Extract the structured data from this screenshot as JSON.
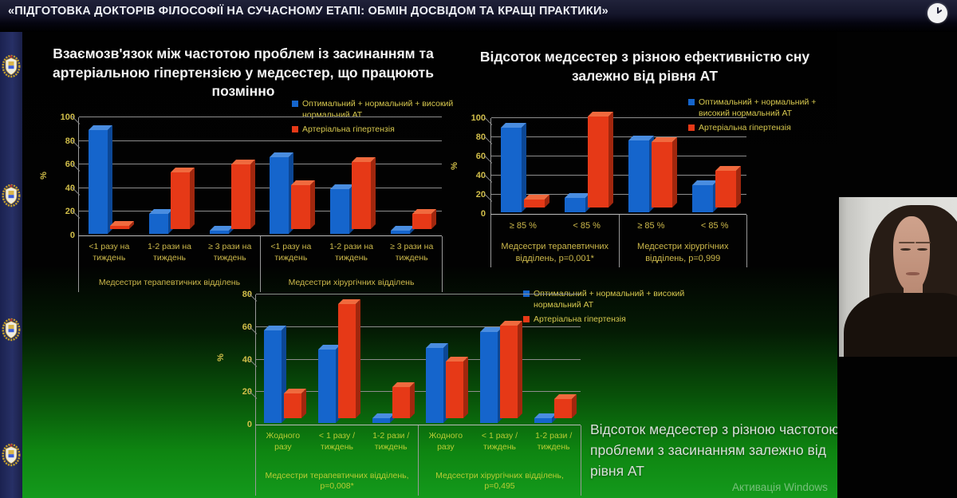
{
  "header": {
    "title": "«ПІДГОТОВКА ДОКТОРІВ ФІЛОСОФІЇ НА СУЧАСНОМУ ЕТАПІ: ОБМІН ДОСВІДОМ ТА КРАЩІ ПРАКТИКИ»"
  },
  "sidebar": {
    "emblem": "university-crest",
    "emblem_count": 4
  },
  "colors": {
    "series_normal_blue": "#1565cc",
    "series_hypertension_red": "#e63917",
    "tick_label_yellow": "#d2bf4a",
    "bottom_label_green_yellow": "#b9cc35",
    "slide_green_bottom": "#149a1c"
  },
  "chart_data": [
    {
      "type": "bar",
      "title": "Взаємозв'язок між частотою проблем із засинанням та артеріальною гіпертензією у медсестер, що працюють позмінно",
      "xlabel": "",
      "ylabel": "%",
      "ylim": [
        0,
        100
      ],
      "yticks": [
        0,
        20,
        40,
        60,
        80,
        100
      ],
      "grid": true,
      "legend_position": "top-right",
      "categories": [
        "<1 разу на тиждень",
        "1-2 рази на тиждень",
        "≥ 3 рази на тиждень",
        "<1 разу на тиждень",
        "1-2 рази на тиждень",
        "≥ 3 рази на тиждень"
      ],
      "series": [
        {
          "name": "Оптимальний + нормальний + високий нормальний АТ",
          "color": "#1565cc",
          "values": [
            88,
            17,
            3,
            65,
            38,
            3
          ]
        },
        {
          "name": "Артеріальна гіпертензія",
          "color": "#e63917",
          "values": [
            3,
            48,
            55,
            37,
            57,
            13
          ]
        }
      ],
      "group_labels": [
        {
          "label": "Медсестри терапевтичних відділень",
          "span": 3
        },
        {
          "label": "Медсестри хірургічних відділень",
          "span": 3
        }
      ]
    },
    {
      "type": "bar",
      "title": "Відсоток медсестер з різною ефективністю сну залежно від рівня АТ",
      "xlabel": "",
      "ylabel": "%",
      "ylim": [
        0,
        100
      ],
      "yticks": [
        0,
        20,
        40,
        60,
        80,
        100
      ],
      "grid": true,
      "legend_position": "top-right",
      "categories": [
        "≥ 85 %",
        "< 85 %",
        "≥ 85 %",
        "< 85 %"
      ],
      "series": [
        {
          "name": "Оптимальний + нормальний + високий нормальний АТ",
          "color": "#1565cc",
          "values": [
            88,
            15,
            75,
            28
          ]
        },
        {
          "name": "Артеріальна гіпертензія",
          "color": "#e63917",
          "values": [
            8,
            95,
            68,
            38
          ]
        }
      ],
      "group_labels": [
        {
          "label": "Медсестри терапевтичних відділень, p=0,001*",
          "span": 2
        },
        {
          "label": "Медсестри хірургічних відділень, p=0,999",
          "span": 2
        }
      ]
    },
    {
      "type": "bar",
      "title": "",
      "xlabel": "",
      "ylabel": "%",
      "ylim": [
        0,
        80
      ],
      "yticks": [
        0,
        20,
        40,
        60,
        80
      ],
      "grid": true,
      "legend_position": "right",
      "categories": [
        "Жодного разу",
        "< 1 разу / тиждень",
        "1-2 рази / тиждень",
        "Жодного разу",
        "< 1 разу / тиждень",
        "1-2 рази / тиждень"
      ],
      "series": [
        {
          "name": "Оптимальний + нормальний + високий нормальний АТ",
          "color": "#1565cc",
          "values": [
            57,
            45,
            3,
            46,
            56,
            3
          ]
        },
        {
          "name": "Артеріальна гіпертензія",
          "color": "#e63917",
          "values": [
            15,
            70,
            19,
            35,
            57,
            12
          ]
        }
      ],
      "group_labels": [
        {
          "label": "Медсестри терапевтичних відділень, p=0,008*",
          "span": 3
        },
        {
          "label": "Медсестри хірургічних відділень, p=0,495",
          "span": 3
        }
      ]
    }
  ],
  "bottom_caption": "Відсоток медсестер з різною частотою проблеми з засинанням залежно від рівня АТ",
  "watermark": "Активація Windows"
}
